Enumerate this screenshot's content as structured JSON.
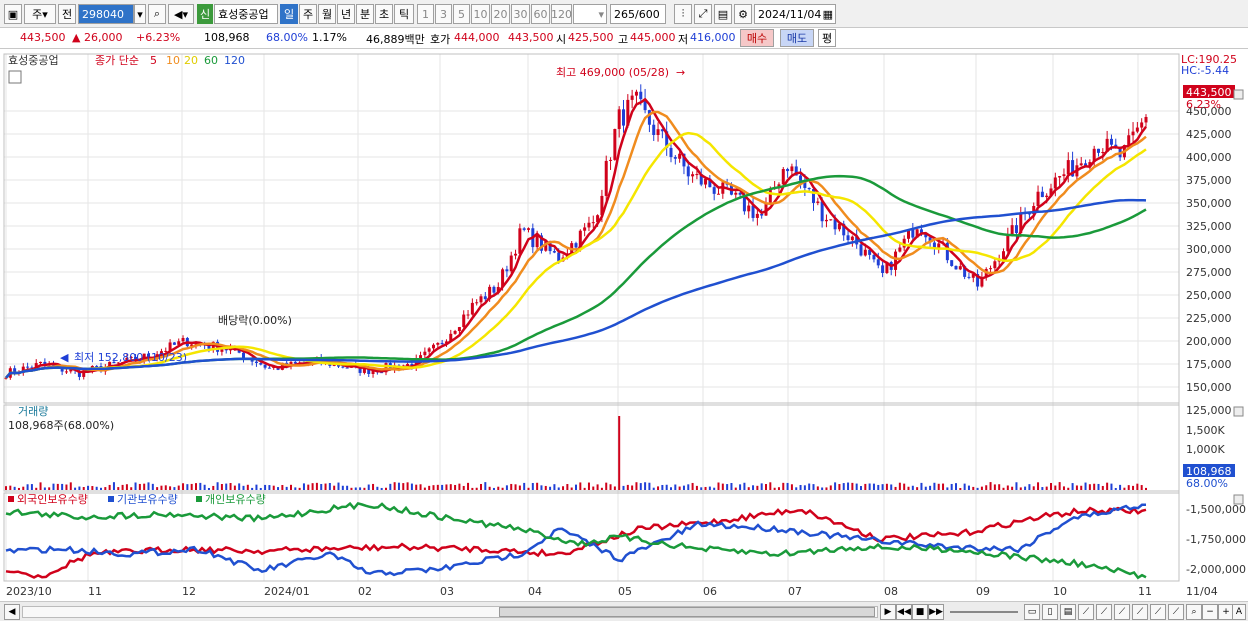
{
  "toolbar": {
    "market": "주",
    "prev": "전",
    "code": "298040",
    "sin": "신",
    "stock_name": "효성중공업",
    "periods": [
      "일",
      "주",
      "월",
      "년",
      "분",
      "초",
      "틱"
    ],
    "intervals": [
      "1",
      "3",
      "5",
      "10",
      "20",
      "30",
      "60",
      "120"
    ],
    "count": "265",
    "count_max": "/600",
    "date": "2024/11/04"
  },
  "quote": {
    "price": "443,500",
    "change": "▲ 26,000",
    "change_pct": "+6.23%",
    "volume": "108,968",
    "volume_ratio": "68.00%",
    "turnover_pct": "1.17%",
    "amount": "46,889백만",
    "hoga_label": "호가",
    "hoga_ask": "444,000",
    "hoga_bid": "443,500",
    "open_label": "시",
    "open": "425,500",
    "high_label": "고",
    "high": "445,000",
    "low_label": "저",
    "low": "416,000",
    "buy_btn": "매수",
    "sell_btn": "매도",
    "eval_btn": "평"
  },
  "price_panel": {
    "stock_tag": "효성중공업",
    "ma_title": "종가 단순",
    "ma_periods": [
      "5",
      "10",
      "20",
      "60",
      "120"
    ],
    "ma_colors": [
      "#d0021b",
      "#f08c1e",
      "#f5e600",
      "#1a9a3a",
      "#2050d0"
    ],
    "max_label": "최고 469,000 (05/28)",
    "min_label": "최저 152,800 (10/23)",
    "dividend_label": "배당락(0.00%)",
    "lc": "LC:190.25",
    "hc": "HC:-5.44",
    "current_tag": "443,500",
    "current_pct": "6.23%",
    "y_labels": [
      "450,000",
      "425,000",
      "400,000",
      "375,000",
      "350,000",
      "325,000",
      "300,000",
      "275,000",
      "250,000",
      "225,000",
      "200,000",
      "175,000",
      "150,000",
      "125,000"
    ]
  },
  "volume_panel": {
    "title": "거래량",
    "value_label": "108,968주(68.00%)",
    "y_labels": [
      "1,500K",
      "1,000K"
    ],
    "current_tag": "108,968",
    "current_pct": "68.00%"
  },
  "investor_panel": {
    "legend": [
      "외국인보유수량",
      "기관보유수량",
      "개인보유수량"
    ],
    "legend_colors": [
      "#d0021b",
      "#2050d0",
      "#1a9a3a"
    ],
    "y_labels": [
      "-1,500,000",
      "-1,750,000",
      "-2,000,000"
    ]
  },
  "x_axis": {
    "labels": [
      "2023/10",
      "11",
      "12",
      "2024/01",
      "02",
      "03",
      "04",
      "05",
      "06",
      "07",
      "08",
      "09",
      "10",
      "11"
    ],
    "right_label": "11/04"
  }
}
